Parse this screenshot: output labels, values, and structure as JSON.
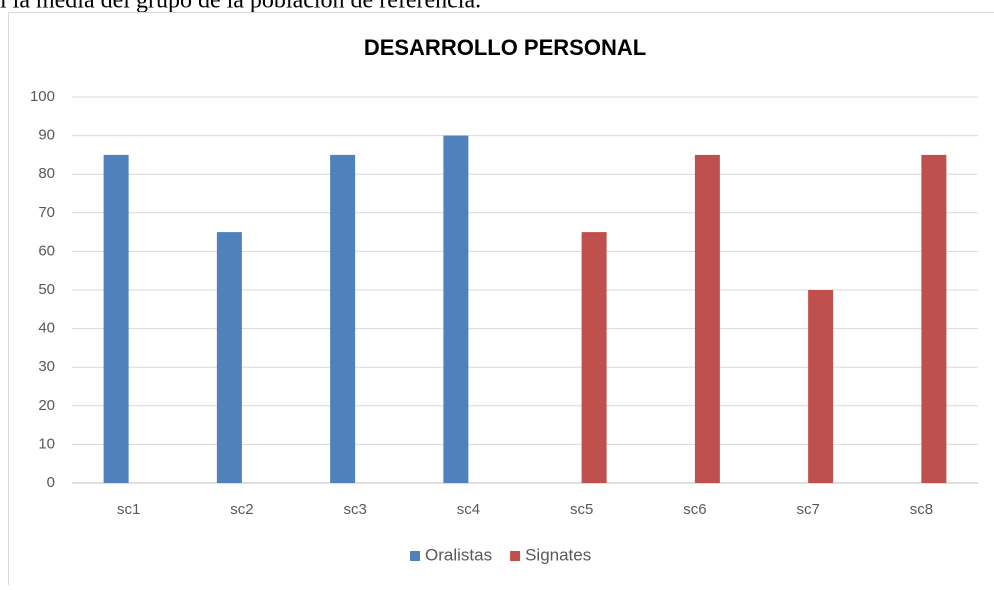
{
  "document": {
    "text": "l la media del grupo de la población de referencia."
  },
  "chart_data": {
    "type": "bar",
    "title": "DESARROLLO PERSONAL",
    "categories": [
      "sc1",
      "sc2",
      "sc3",
      "sc4",
      "sc5",
      "sc6",
      "sc7",
      "sc8"
    ],
    "series": [
      {
        "name": "Oralistas",
        "color": "#4f81bd",
        "values": [
          85,
          65,
          85,
          90,
          null,
          null,
          null,
          null
        ]
      },
      {
        "name": "Signates",
        "color": "#c0504d",
        "values": [
          null,
          null,
          null,
          null,
          65,
          85,
          50,
          85
        ]
      }
    ],
    "ylim": [
      0,
      100
    ],
    "yticks": [
      0,
      10,
      20,
      30,
      40,
      50,
      60,
      70,
      80,
      90,
      100
    ],
    "grid": true,
    "legend": "bottom"
  }
}
